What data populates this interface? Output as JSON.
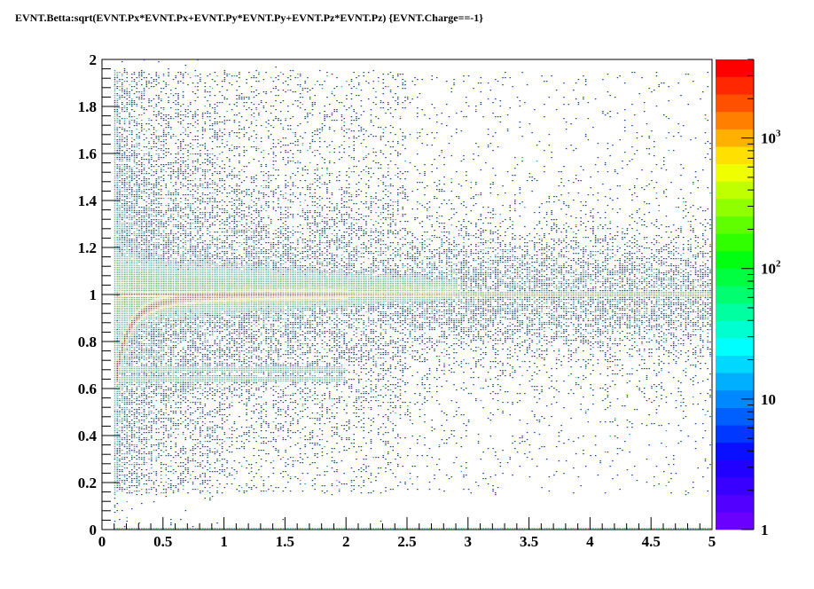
{
  "chart_data": {
    "type": "heatmap",
    "title": "EVNT.Betta:sqrt(EVNT.Px*EVNT.Px+EVNT.Py*EVNT.Py+EVNT.Pz*EVNT.Pz) {EVNT.Charge==-1}",
    "xlabel": "",
    "ylabel": "",
    "xlim": [
      0,
      5
    ],
    "ylim": [
      0,
      2
    ],
    "x_ticks": [
      "0",
      "0.5",
      "1",
      "1.5",
      "2",
      "2.5",
      "3",
      "3.5",
      "4",
      "4.5",
      "5"
    ],
    "y_ticks": [
      "0",
      "0.2",
      "0.4",
      "0.6",
      "0.8",
      "1",
      "1.2",
      "1.4",
      "1.6",
      "1.8",
      "2"
    ],
    "z_scale": "log",
    "zlim": [
      1,
      4000
    ],
    "z_ticks": [
      {
        "value": 1,
        "base": "1",
        "exp": ""
      },
      {
        "value": 10,
        "base": "10",
        "exp": ""
      },
      {
        "value": 100,
        "base": "10",
        "exp": "2"
      },
      {
        "value": 1000,
        "base": "10",
        "exp": "3"
      }
    ],
    "palette": [
      "#6a00ff",
      "#5200ff",
      "#3a00ff",
      "#2200ff",
      "#0a10ff",
      "#0038ff",
      "#0060ff",
      "#0088ff",
      "#00b0ff",
      "#00d8ff",
      "#00ffff",
      "#00ffd0",
      "#00ffa0",
      "#00ff70",
      "#00ff40",
      "#00ff10",
      "#30ff00",
      "#60ff00",
      "#90ff00",
      "#c0ff00",
      "#f0ff00",
      "#ffe000",
      "#ffb000",
      "#ff8000",
      "#ff5000",
      "#ff2800",
      "#ff0000"
    ],
    "features": [
      {
        "name": "beta=1 band",
        "x_range": [
          0.1,
          5
        ],
        "y_center": 1.0,
        "peak_counts": 3000
      },
      {
        "name": "pion curve",
        "x_range": [
          0.1,
          2.0
        ],
        "y_from": 0.63,
        "y_to": 1.0
      },
      {
        "name": "faint bands",
        "y_levels": [
          0.64,
          0.68
        ],
        "x_range": [
          0.1,
          2.0
        ]
      },
      {
        "name": "halo",
        "y_range": [
          0.9,
          1.15
        ],
        "x_range": [
          0.1,
          2.8
        ]
      },
      {
        "name": "scatter",
        "y_range": [
          0.15,
          1.95
        ],
        "x_range": [
          0.1,
          5
        ]
      }
    ],
    "legend": "none",
    "grid": false
  }
}
